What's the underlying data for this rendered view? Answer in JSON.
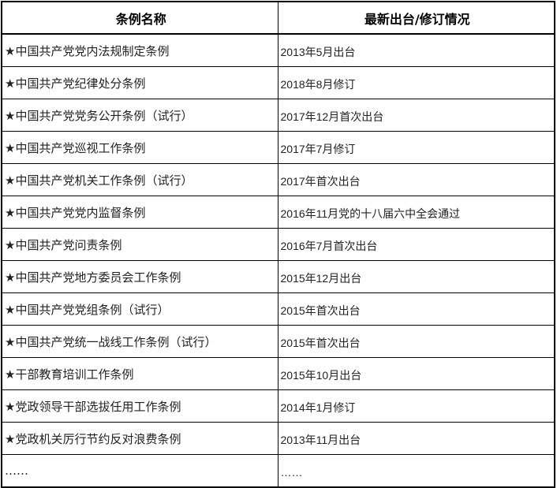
{
  "table": {
    "headers": [
      "条例名称",
      "最新出台/修订情况"
    ],
    "rows": [
      [
        "★中国共产党党内法规制定条例",
        "2013年5月出台"
      ],
      [
        "★中国共产党纪律处分条例",
        "2018年8月修订"
      ],
      [
        "★中国共产党党务公开条例（试行）",
        "2017年12月首次出台"
      ],
      [
        "★中国共产党巡视工作条例",
        "2017年7月修订"
      ],
      [
        "★中国共产党机关工作条例（试行）",
        "2017年首次出台"
      ],
      [
        "★中国共产党党内监督条例",
        "2016年11月党的十八届六中全会通过"
      ],
      [
        "★中国共产党问责条例",
        "2016年7月首次出台"
      ],
      [
        "★中国共产党地方委员会工作条例",
        "2015年12月出台"
      ],
      [
        "★中国共产党党组条例（试行）",
        "2015年首次出台"
      ],
      [
        "★中国共产党统一战线工作条例（试行）",
        "2015年首次出台"
      ],
      [
        "★干部教育培训工作条例",
        "2015年10月出台"
      ],
      [
        "★党政领导干部选拔任用工作条例",
        "2014年1月修订"
      ],
      [
        "★党政机关厉行节约反对浪费条例",
        "2013年11月出台"
      ],
      [
        "……",
        "……"
      ]
    ]
  }
}
